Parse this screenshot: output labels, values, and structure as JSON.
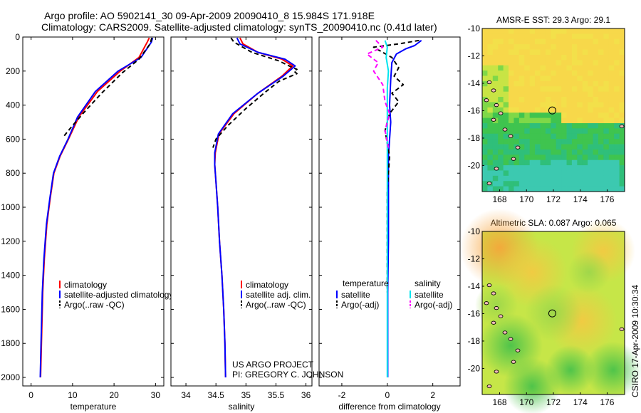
{
  "title_line1": "Argo profile: AO 5902141_30 09-Apr-2009 20090410_8 15.984S 171.918E",
  "title_line2": "Climatology: CARS2009. Satellite-adjusted climatology: synTS_20090410.nc (0.41d later)",
  "credit": {
    "line1": "US ARGO PROJECT",
    "line2": "PI: GREGORY C. JOHNSON"
  },
  "timestamp": "CSIRO 17-Apr-2009 10:30:34",
  "colors": {
    "climatology": "#ff0000",
    "satellite": "#0000ff",
    "argo": "#000000",
    "sal_satellite": "#00e5ee",
    "sal_argo": "#ff00ff"
  },
  "chart_data": [
    {
      "type": "line",
      "name": "temperature_profile",
      "xlabel": "temperature",
      "ylabel": "",
      "xlim": [
        -2,
        32
      ],
      "ylim": [
        2050,
        0
      ],
      "xticks": [
        0,
        10,
        20,
        30
      ],
      "yticks": [
        0,
        200,
        400,
        600,
        800,
        1000,
        1200,
        1400,
        1600,
        1800,
        2000
      ],
      "legend": [
        "climatology",
        "satellite-adjusted climatology",
        "Argo(..raw -QC)"
      ],
      "series": [
        {
          "name": "climatology",
          "color": "#ff0000",
          "dash": false,
          "x": [
            28.5,
            28.0,
            26.0,
            21.5,
            16.0,
            11.5,
            9.0,
            7.0,
            5.5,
            4.6,
            3.8,
            3.2,
            2.8,
            2.5,
            2.3
          ],
          "y": [
            5,
            30,
            120,
            200,
            320,
            470,
            600,
            700,
            800,
            950,
            1100,
            1300,
            1500,
            1800,
            2000
          ]
        },
        {
          "name": "satellite",
          "color": "#0000ff",
          "dash": false,
          "x": [
            29.3,
            29.0,
            26.5,
            21.0,
            15.5,
            11.2,
            8.9,
            6.9,
            5.4,
            4.5,
            3.7,
            3.1,
            2.7,
            2.4,
            2.2
          ],
          "y": [
            5,
            30,
            120,
            200,
            320,
            470,
            600,
            700,
            800,
            950,
            1100,
            1300,
            1500,
            1800,
            2000
          ]
        },
        {
          "name": "argo",
          "color": "#000000",
          "dash": true,
          "x": [
            29.1,
            28.7,
            26.0,
            22.0,
            17.0,
            12.5,
            10.0,
            8.0
          ],
          "y": [
            5,
            40,
            130,
            210,
            330,
            450,
            520,
            580
          ]
        }
      ]
    },
    {
      "type": "line",
      "name": "salinity_profile",
      "xlabel": "salinity",
      "xlim": [
        33.75,
        36.1
      ],
      "ylim": [
        2050,
        0
      ],
      "xticks": [
        34,
        34.5,
        35,
        35.5,
        36
      ],
      "xticklabels": [
        "34",
        "34.5",
        "35",
        "35.5",
        "36"
      ],
      "legend": [
        "climatology",
        "satellite adj. clim.",
        "Argo(..raw -QC)"
      ],
      "series": [
        {
          "name": "climatology",
          "color": "#ff0000",
          "dash": false,
          "x": [
            34.9,
            34.95,
            35.2,
            35.6,
            35.78,
            35.6,
            35.2,
            34.8,
            34.55,
            34.49,
            34.48,
            34.5,
            34.53,
            34.56,
            34.6,
            34.63,
            34.65,
            34.66
          ],
          "y": [
            5,
            40,
            90,
            130,
            170,
            230,
            330,
            450,
            570,
            680,
            750,
            850,
            1000,
            1200,
            1400,
            1600,
            1800,
            2000
          ]
        },
        {
          "name": "satellite",
          "color": "#0000ff",
          "dash": false,
          "x": [
            34.85,
            34.9,
            35.2,
            35.65,
            35.82,
            35.62,
            35.2,
            34.78,
            34.54,
            34.48,
            34.48,
            34.5,
            34.53,
            34.56,
            34.6,
            34.63,
            34.65,
            34.66
          ],
          "y": [
            5,
            40,
            90,
            130,
            170,
            230,
            330,
            450,
            570,
            680,
            750,
            850,
            1000,
            1200,
            1400,
            1600,
            1800,
            2000
          ]
        },
        {
          "name": "argo",
          "color": "#000000",
          "dash": true,
          "x": [
            34.75,
            34.8,
            35.1,
            35.55,
            35.72,
            35.85,
            35.8,
            35.85,
            35.55,
            35.3,
            35.0,
            34.7,
            34.5,
            34.45
          ],
          "y": [
            5,
            30,
            90,
            140,
            170,
            190,
            200,
            215,
            260,
            330,
            420,
            520,
            600,
            650
          ]
        }
      ]
    },
    {
      "type": "line",
      "name": "difference_profile",
      "xlabel": "difference from climatology",
      "xlim": [
        -3.0,
        3.2
      ],
      "ylim": [
        2050,
        0
      ],
      "xticks": [
        -2,
        0,
        2
      ],
      "legend_headers": [
        "temperature",
        "salinity"
      ],
      "legend": [
        "satellite",
        "Argo(-adj)",
        "satellite",
        "Argo(-adj)"
      ],
      "series": [
        {
          "name": "temp_satellite",
          "color": "#0000ff",
          "dash": false,
          "x": [
            1.5,
            1.2,
            0.8,
            0.4,
            0.2,
            0.15,
            0.1,
            0.15,
            0.1,
            0.05,
            0.05,
            0.05,
            0.02,
            0.02,
            0.02
          ],
          "y": [
            20,
            50,
            70,
            100,
            150,
            250,
            400,
            500,
            600,
            700,
            900,
            1200,
            1500,
            1800,
            2000
          ]
        },
        {
          "name": "temp_argo",
          "color": "#000000",
          "dash": true,
          "x": [
            1.4,
            0.5,
            -0.6,
            0.2,
            0.5,
            0.3,
            0.7,
            0.2,
            0.5,
            0.1,
            -0.1,
            0.1,
            0.0,
            0.0,
            0.0,
            0.0
          ],
          "y": [
            20,
            40,
            60,
            120,
            180,
            230,
            280,
            330,
            380,
            450,
            550,
            700,
            900,
            1200,
            1400,
            1500
          ]
        },
        {
          "name": "sal_satellite",
          "color": "#00e5ee",
          "dash": false,
          "x": [
            -0.1,
            0.0,
            -0.05,
            0.05,
            0.0,
            0.0,
            0.0,
            0.0,
            0.0,
            0.0
          ],
          "y": [
            20,
            60,
            120,
            200,
            300,
            450,
            700,
            1000,
            1500,
            2000
          ]
        },
        {
          "name": "sal_argo",
          "color": "#ff00ff",
          "dash": true,
          "x": [
            -0.5,
            -0.2,
            -0.9,
            -0.4,
            -0.6,
            -0.2,
            -0.1,
            0.1,
            -0.1,
            0.05
          ],
          "y": [
            20,
            60,
            100,
            150,
            200,
            280,
            380,
            450,
            550,
            650
          ]
        }
      ]
    },
    {
      "type": "heatmap",
      "name": "sst_map",
      "title": "AMSR-E SST: 29.3  Argo: 29.1",
      "xlim": [
        166.7,
        177.3
      ],
      "ylim": [
        -21.9,
        -10
      ],
      "xticks": [
        168,
        170,
        172,
        174,
        176
      ],
      "yticks": [
        -10,
        -12,
        -14,
        -16,
        -18,
        -20
      ],
      "marker": {
        "lon": 171.918,
        "lat": -15.984
      }
    },
    {
      "type": "heatmap",
      "name": "sla_map",
      "title": "Altimetric SLA: 0.087  Argo: 0.065",
      "xlim": [
        166.7,
        177.3
      ],
      "ylim": [
        -21.9,
        -10
      ],
      "xticks": [
        168,
        170,
        172,
        174,
        176
      ],
      "yticks": [
        -10,
        -12,
        -14,
        -16,
        -18,
        -20
      ],
      "marker": {
        "lon": 171.918,
        "lat": -15.984
      }
    }
  ]
}
